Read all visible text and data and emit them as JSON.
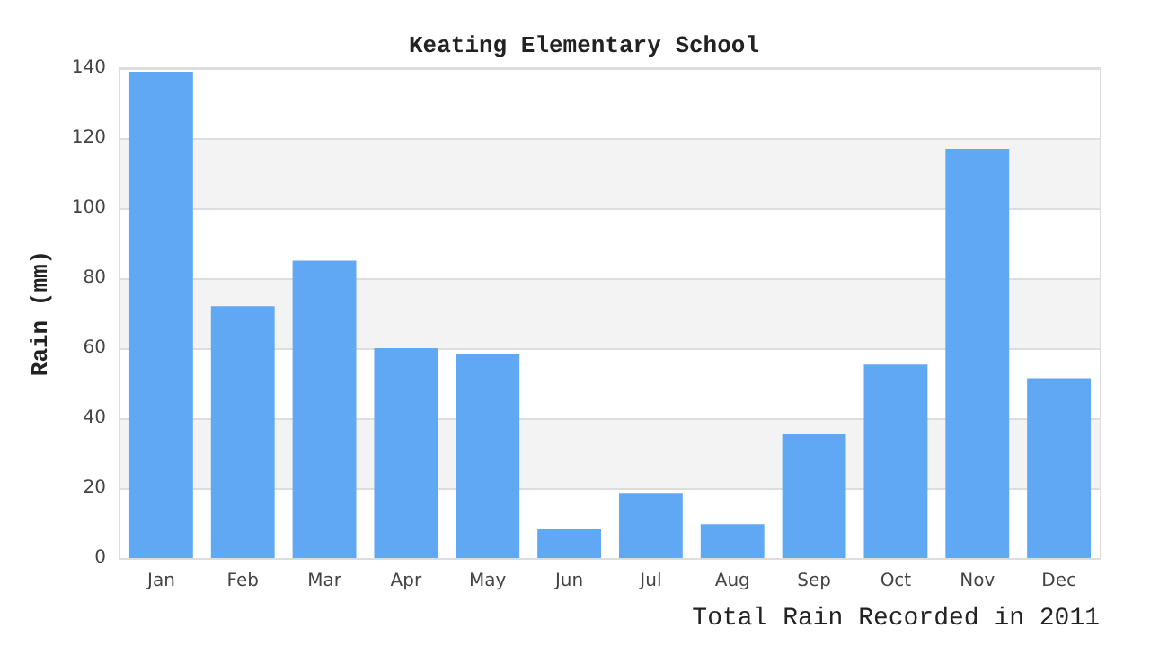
{
  "chart_data": {
    "type": "bar",
    "title": "Keating Elementary School",
    "xlabel": "Total Rain Recorded in 2011",
    "ylabel": "Rain (mm)",
    "categories": [
      "Jan",
      "Feb",
      "Mar",
      "Apr",
      "May",
      "Jun",
      "Jul",
      "Aug",
      "Sep",
      "Oct",
      "Nov",
      "Dec"
    ],
    "values": [
      139,
      72,
      85,
      60,
      58.2,
      8.2,
      18.4,
      9.7,
      35.4,
      55.3,
      116.9,
      51.4
    ],
    "color": "#61a8f4",
    "ylim": [
      0,
      140
    ],
    "yticks": [
      0,
      20,
      40,
      60,
      80,
      100,
      120,
      140
    ],
    "grid": "y"
  }
}
